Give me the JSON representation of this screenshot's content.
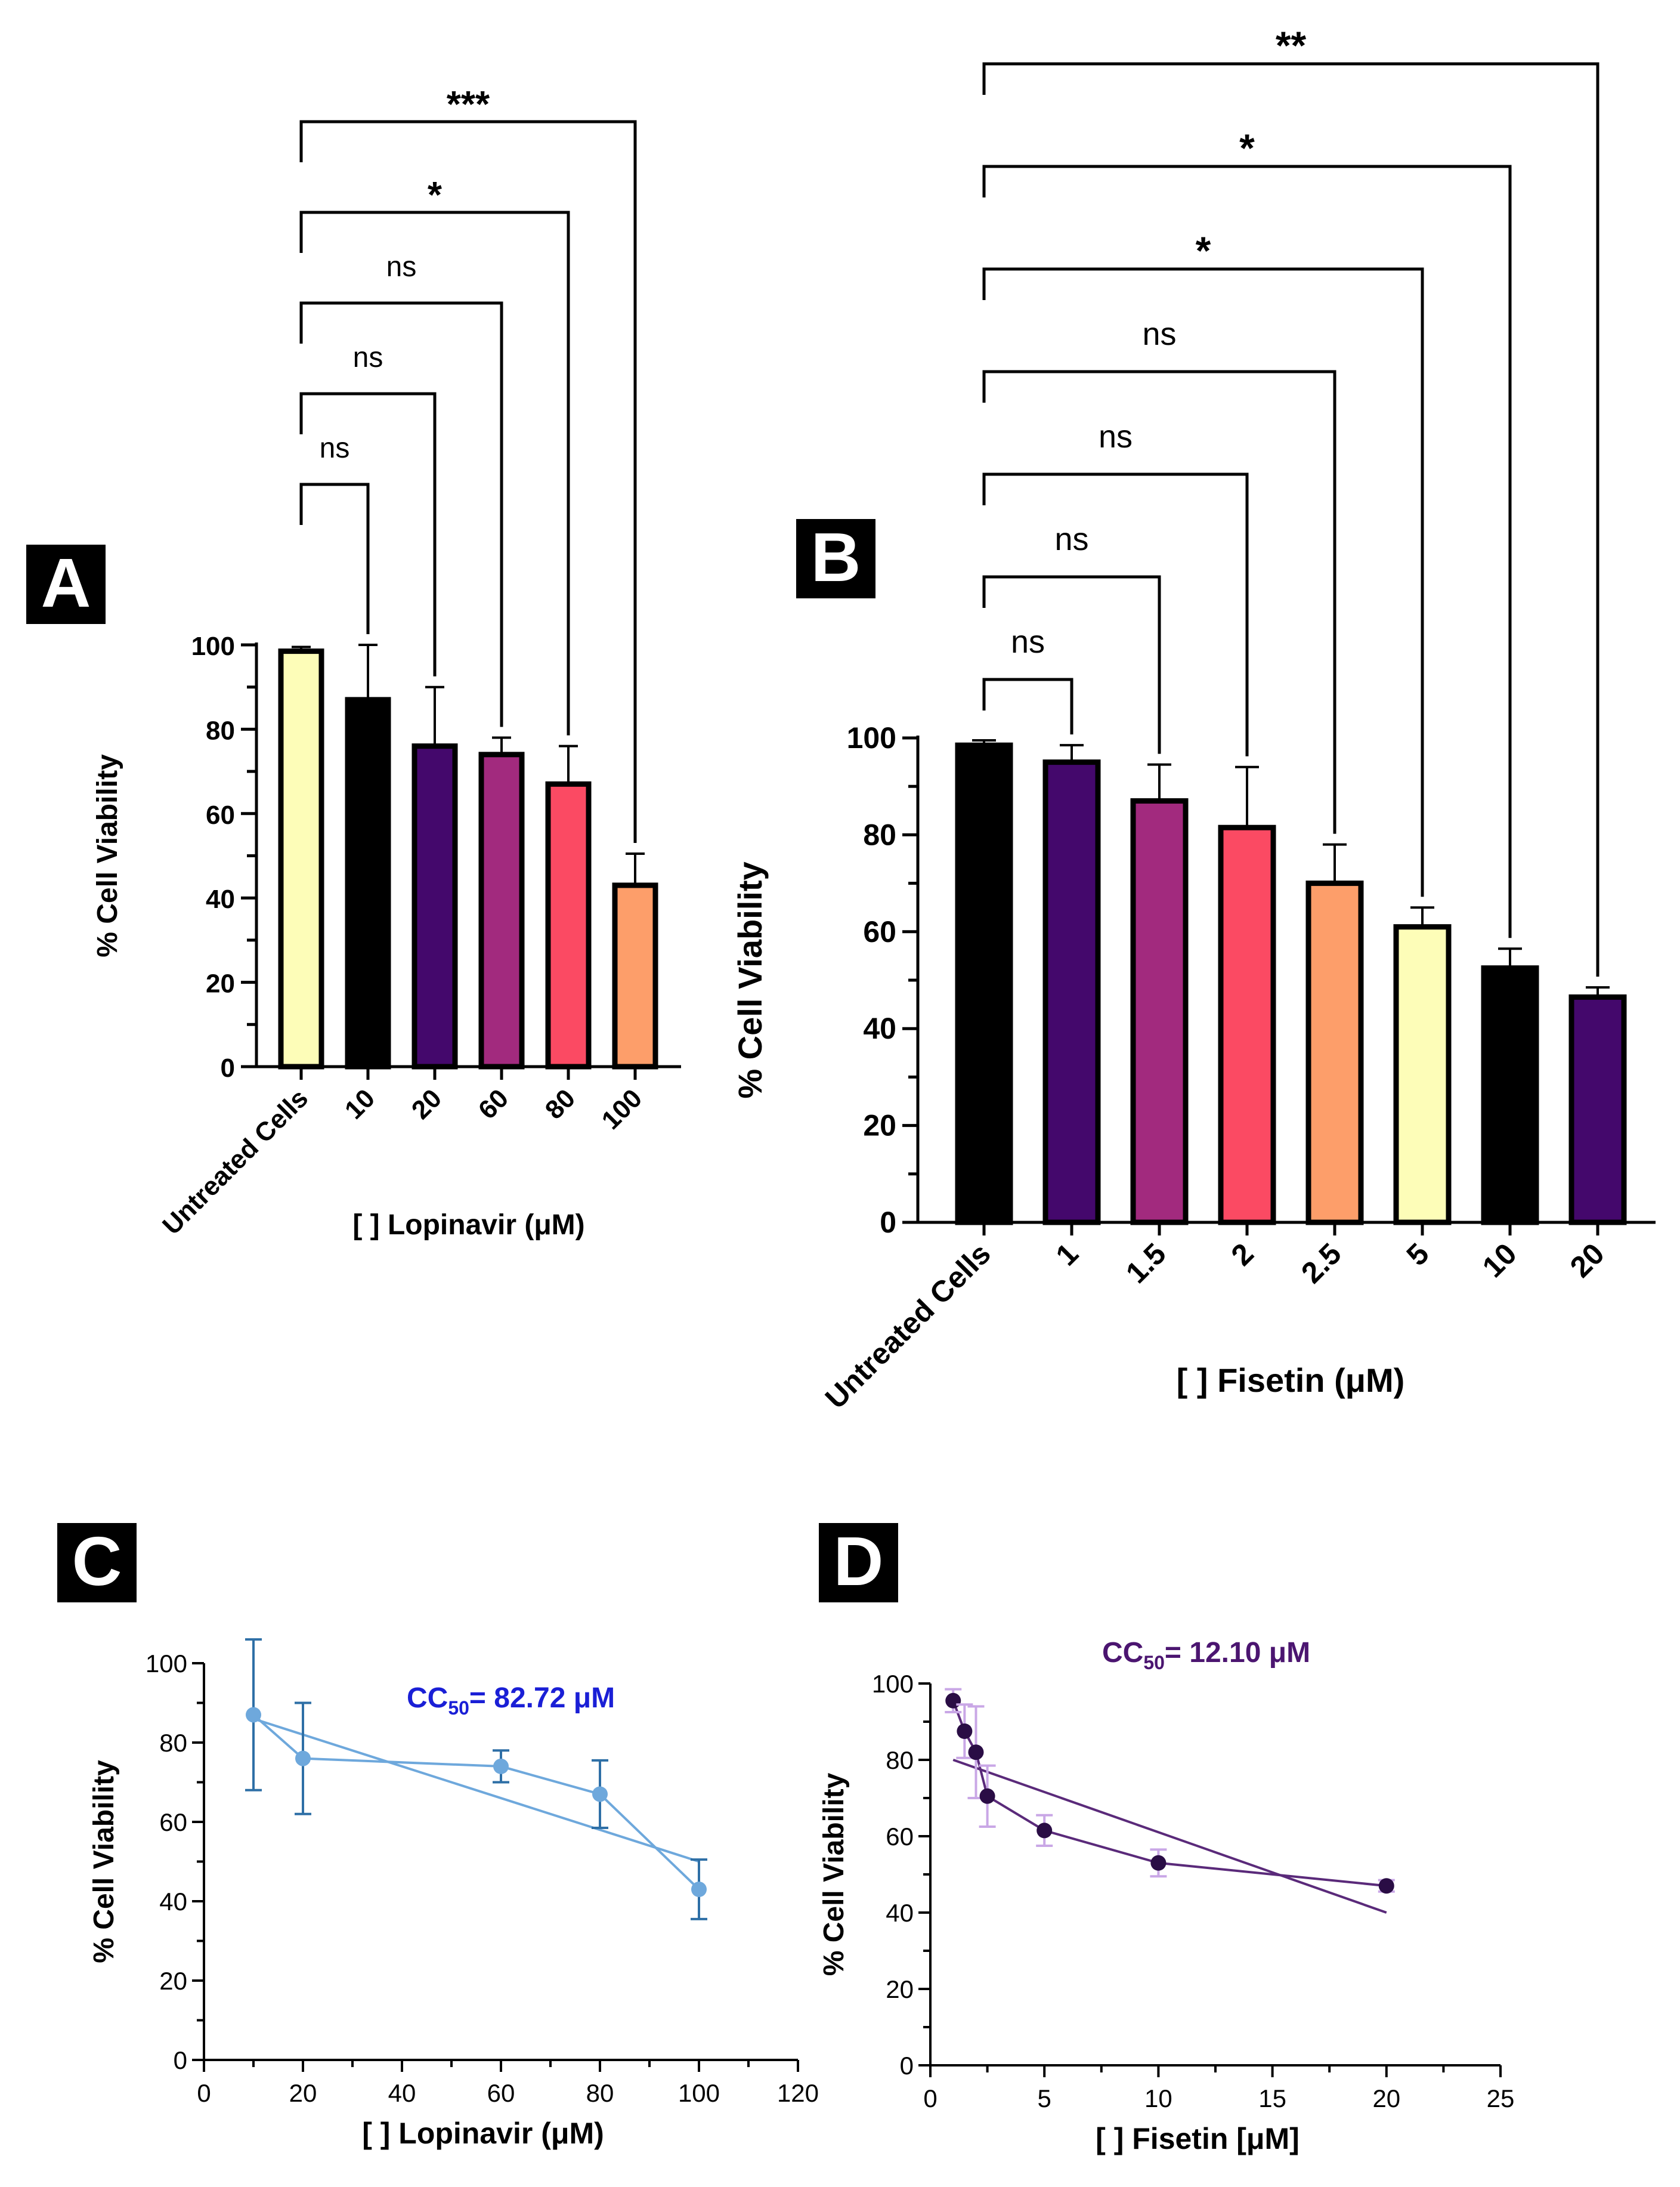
{
  "panels": {
    "A": "A",
    "B": "B",
    "C": "C",
    "D": "D"
  },
  "colors": {
    "axis": "#000000",
    "cc50_C": "#1a1fd6",
    "cc50_D": "#4b1570",
    "line_C": "#6ea8dc",
    "err_C": "#2e6fa6",
    "line_D": "#5a2a7a",
    "point_D": "#2a0d45",
    "err_D": "#c9a7e6"
  },
  "chart_data": [
    {
      "panel": "A",
      "type": "bar",
      "categories": [
        "Untreated Cells",
        "10",
        "20",
        "60",
        "80",
        "100"
      ],
      "values": [
        98.5,
        87,
        76,
        74,
        67,
        43
      ],
      "errors": [
        1,
        13,
        14,
        4,
        9,
        7.5
      ],
      "colors": [
        "#fdfdb8",
        "#000000",
        "#44086c",
        "#a22a7e",
        "#fb4a63",
        "#fd9e6a"
      ],
      "xlabel": "[ ] Lopinavir (μM)",
      "ylabel": "% Cell Viability",
      "ylim": [
        0,
        100
      ],
      "yticks": [
        "0",
        "20",
        "40",
        "60",
        "80",
        "100"
      ],
      "comparisons": [
        {
          "to": "10",
          "label": "ns"
        },
        {
          "to": "20",
          "label": "ns"
        },
        {
          "to": "60",
          "label": "ns"
        },
        {
          "to": "80",
          "label": "*"
        },
        {
          "to": "100",
          "label": "***"
        }
      ]
    },
    {
      "panel": "B",
      "type": "bar",
      "categories": [
        "Untreated Cells",
        "1",
        "1.5",
        "2",
        "2.5",
        "5",
        "10",
        "20"
      ],
      "values": [
        98.5,
        95,
        87,
        81.5,
        70,
        61,
        52.5,
        46.5
      ],
      "errors": [
        1,
        3.5,
        7.5,
        12.5,
        8,
        4,
        4,
        2
      ],
      "colors": [
        "#000000",
        "#44086c",
        "#a22a7e",
        "#fb4a63",
        "#fd9e6a",
        "#fdfdb8",
        "#000000",
        "#44086c"
      ],
      "xlabel": "[ ] Fisetin (μM)",
      "ylabel": "% Cell Viability",
      "ylim": [
        0,
        100
      ],
      "yticks": [
        "0",
        "20",
        "40",
        "60",
        "80",
        "100"
      ],
      "comparisons": [
        {
          "to": "1",
          "label": "ns"
        },
        {
          "to": "1.5",
          "label": "ns"
        },
        {
          "to": "2",
          "label": "ns"
        },
        {
          "to": "2.5",
          "label": "ns"
        },
        {
          "to": "5",
          "label": "*"
        },
        {
          "to": "10",
          "label": "*"
        },
        {
          "to": "20",
          "label": "**"
        }
      ]
    },
    {
      "panel": "C",
      "type": "scatter",
      "x": [
        10,
        20,
        60,
        80,
        100
      ],
      "y": [
        87,
        76,
        74,
        67,
        43
      ],
      "errors": [
        19,
        14,
        4,
        8.5,
        7.5
      ],
      "fit": [
        [
          10,
          86
        ],
        [
          100,
          50
        ]
      ],
      "annotation": {
        "prefix": "CC",
        "sub": "50",
        "suffix": "= 82.72 μM"
      },
      "xlabel": "[ ] Lopinavir (μM)",
      "ylabel": "% Cell Viability",
      "xlim": [
        0,
        120
      ],
      "ylim": [
        0,
        100
      ],
      "xticks": [
        "0",
        "20",
        "40",
        "60",
        "80",
        "100",
        "120"
      ],
      "yticks": [
        "0",
        "20",
        "40",
        "60",
        "80",
        "100"
      ]
    },
    {
      "panel": "D",
      "type": "scatter",
      "x": [
        1,
        1.5,
        2,
        2.5,
        5,
        10,
        20
      ],
      "y": [
        95.5,
        87.5,
        82,
        70.5,
        61.5,
        53,
        47
      ],
      "errors": [
        3,
        7,
        12,
        8,
        4,
        3.5,
        1.5
      ],
      "fit": [
        [
          1,
          80
        ],
        [
          20,
          40
        ]
      ],
      "annotation": {
        "prefix": "CC",
        "sub": "50",
        "suffix": "= 12.10 μM"
      },
      "xlabel": "[ ] Fisetin [μM]",
      "ylabel": "% Cell Viability",
      "xlim": [
        0,
        25
      ],
      "ylim": [
        0,
        100
      ],
      "xticks": [
        "0",
        "5",
        "10",
        "15",
        "20",
        "25"
      ],
      "yticks": [
        "0",
        "20",
        "40",
        "60",
        "80",
        "100"
      ]
    }
  ]
}
